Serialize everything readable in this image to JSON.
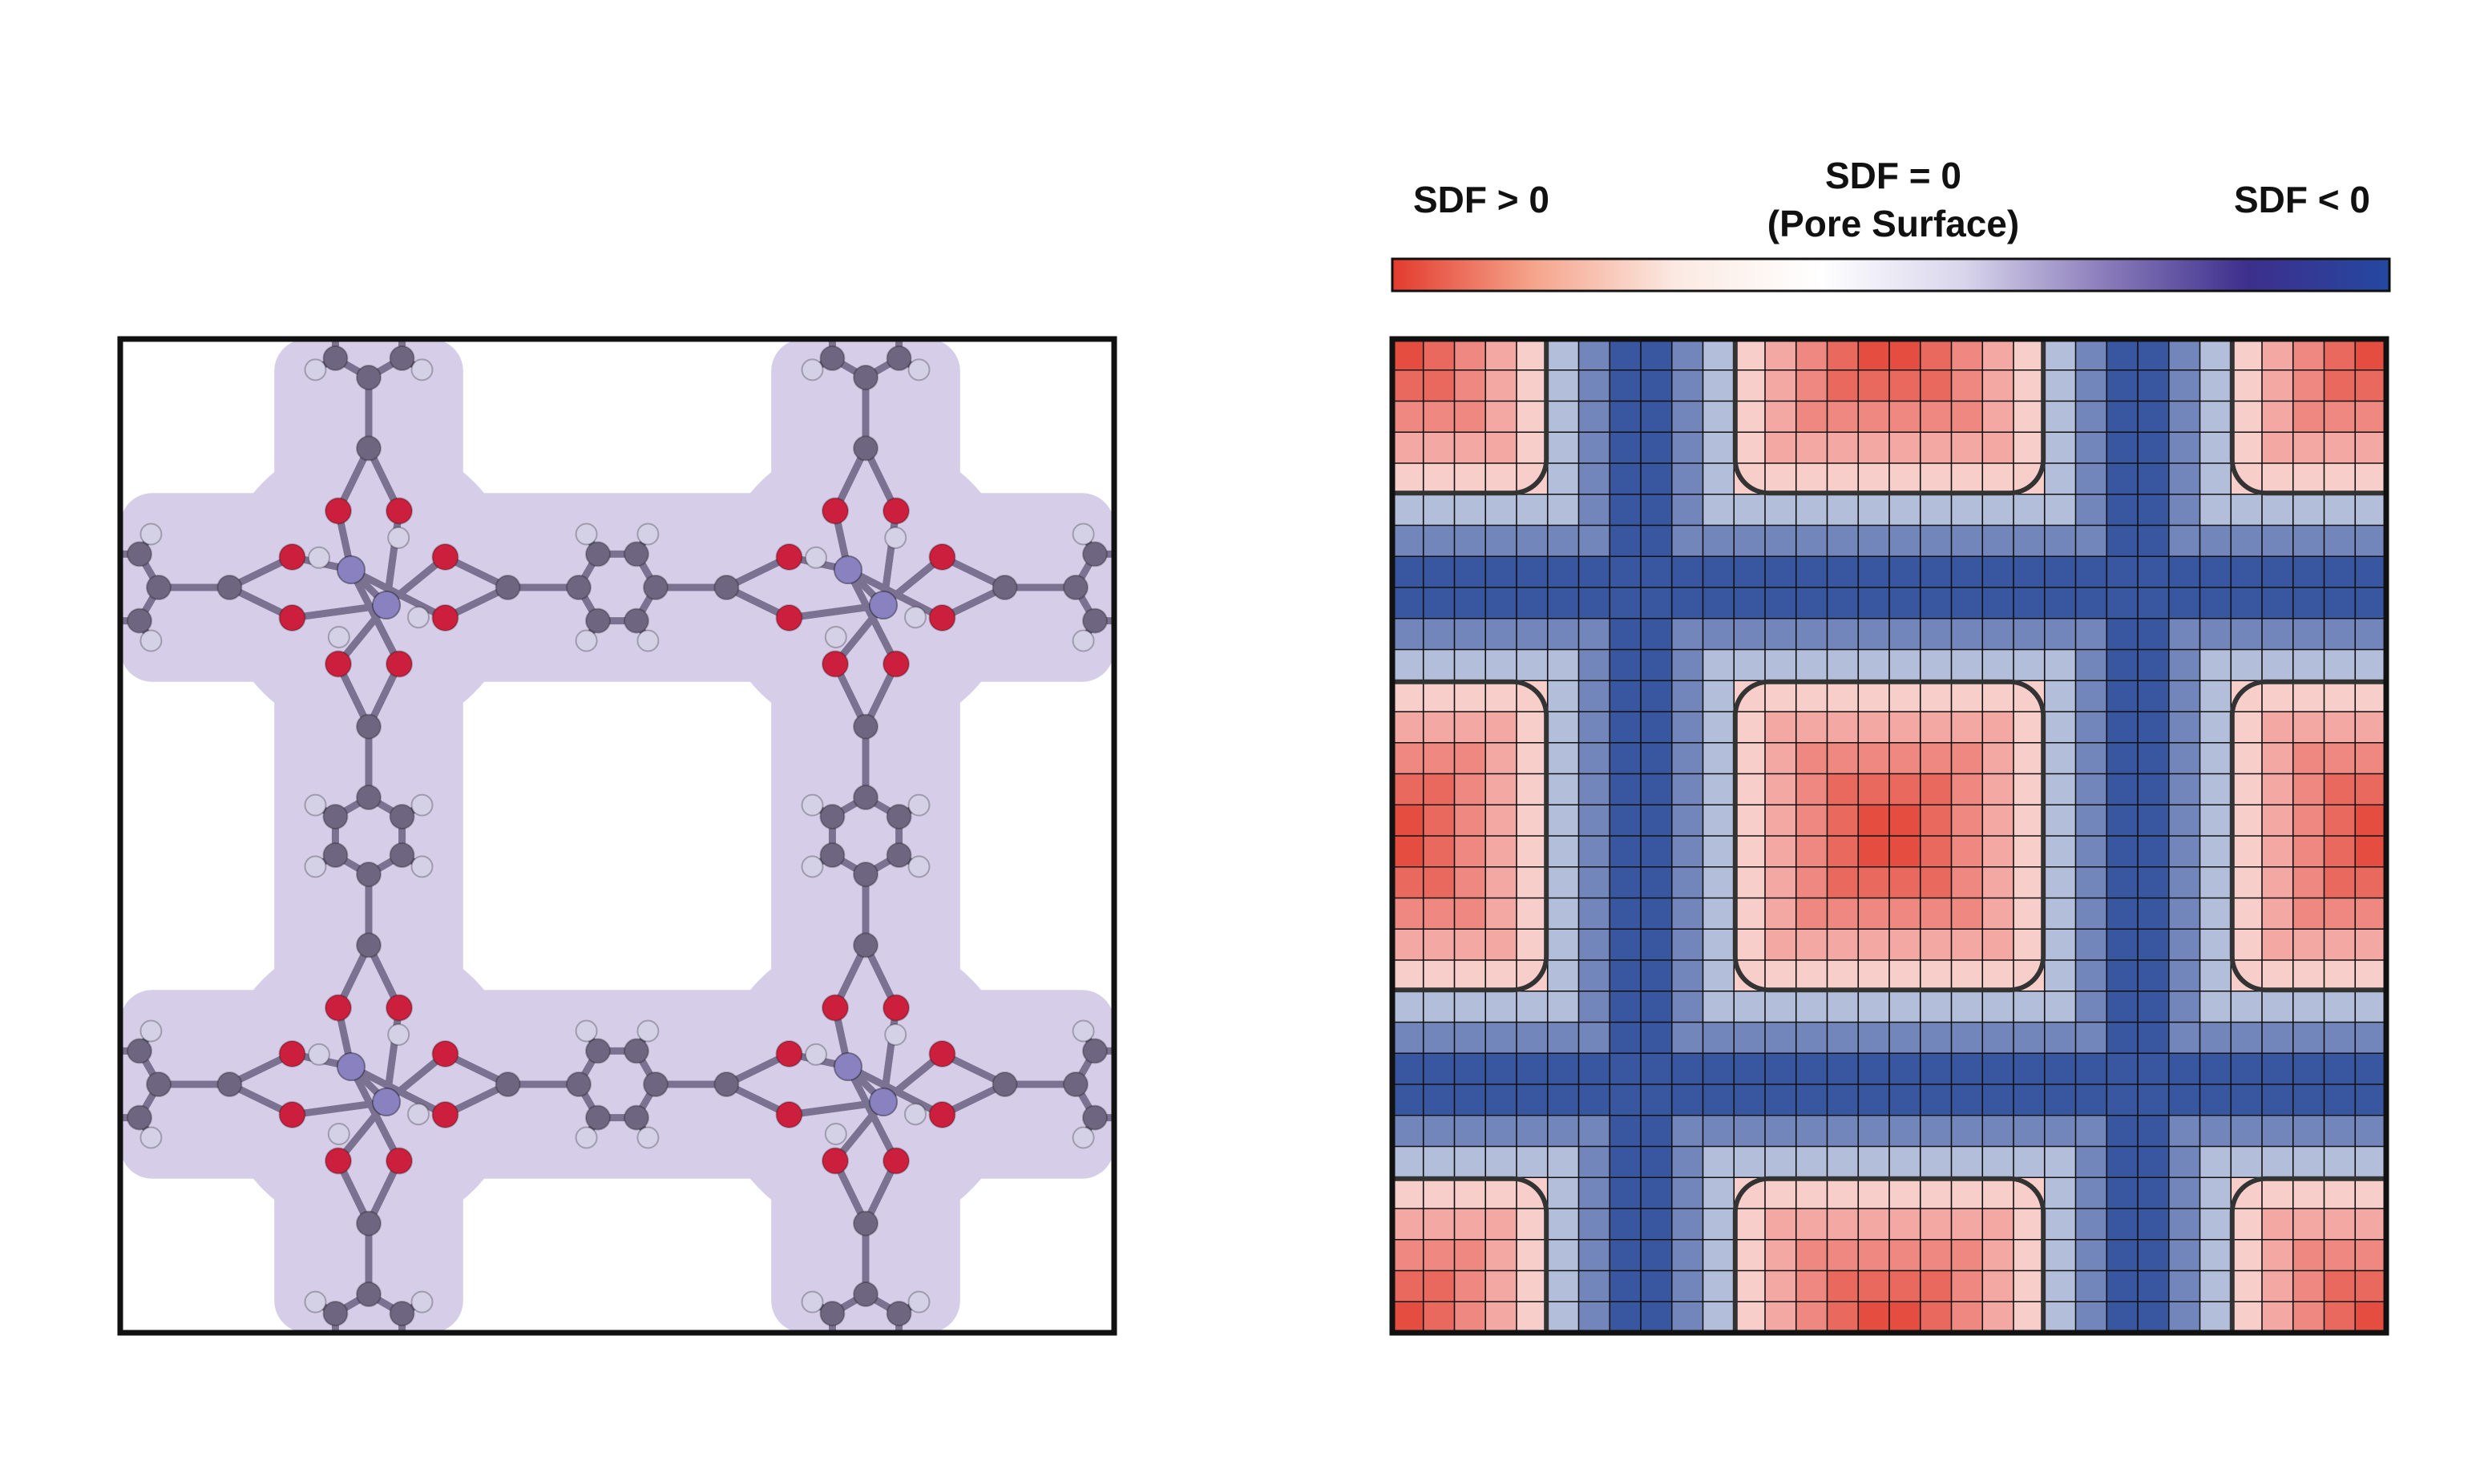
{
  "colorbar": {
    "left_label": "SDF > 0",
    "center_label": "SDF = 0",
    "center_sublabel": "(Pore Surface)",
    "right_label": "SDF < 0",
    "colors": [
      "#e33b2e",
      "#f5a58c",
      "#fbeae3",
      "#ffffff",
      "#d9d6ec",
      "#8a7cba",
      "#3d2f8c",
      "#2448a0"
    ]
  },
  "molecule_panel": {
    "atom_colors": {
      "carbon": "#6e6680",
      "oxygen": "#cc1f3d",
      "hydrogen": "#d4d0e6",
      "metal": "#8a82c0",
      "bond": "#7a7290"
    },
    "surface_color": "#cfc6e4"
  },
  "grid_panel": {
    "grid_cells": 32,
    "colormap": {
      "positive_max": "#e33b2e",
      "zero": "#ffffff",
      "negative_max": "#1f3f94"
    },
    "surface_line_color": "#333333"
  }
}
